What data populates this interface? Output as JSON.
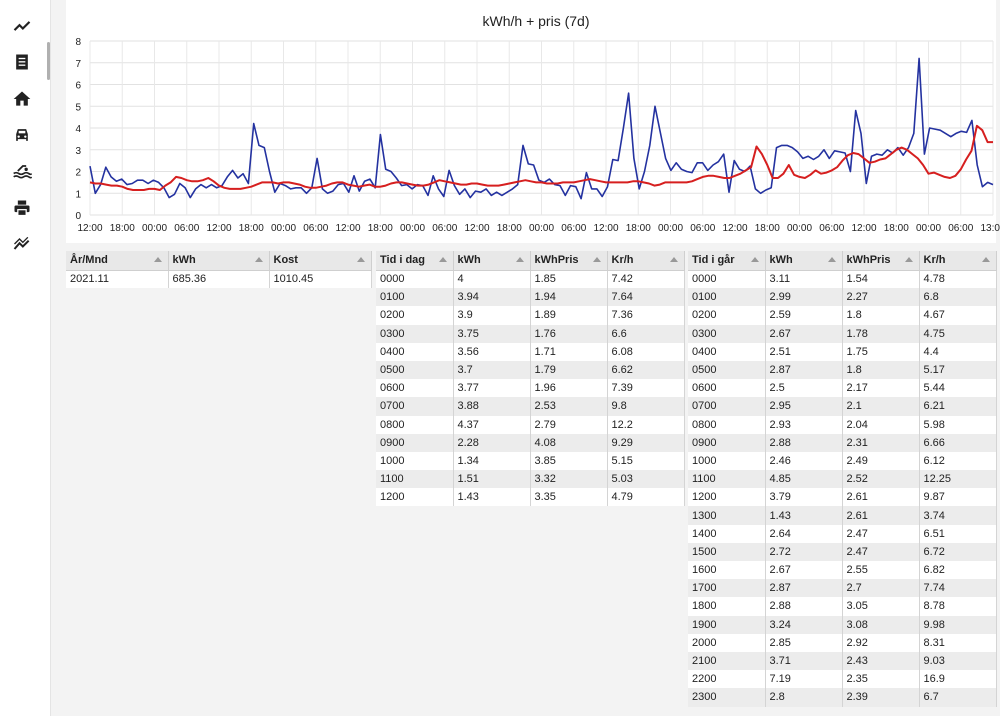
{
  "sidebar": {
    "items": [
      {
        "icon": "chart-line-icon"
      },
      {
        "icon": "receipt-icon"
      },
      {
        "icon": "home-icon"
      },
      {
        "icon": "car-icon"
      },
      {
        "icon": "pool-icon"
      },
      {
        "icon": "printer-icon"
      },
      {
        "icon": "trend-icon"
      }
    ]
  },
  "chart_data": {
    "type": "line",
    "title": "kWh/h + pris (7d)",
    "ylim": [
      0,
      8
    ],
    "yticks": [
      "0",
      "1",
      "2",
      "3",
      "4",
      "5",
      "6",
      "7",
      "8"
    ],
    "xticks": [
      "12:00",
      "18:00",
      "00:00",
      "06:00",
      "12:00",
      "18:00",
      "00:00",
      "06:00",
      "12:00",
      "18:00",
      "00:00",
      "06:00",
      "12:00",
      "18:00",
      "00:00",
      "06:00",
      "12:00",
      "18:00",
      "00:00",
      "06:00",
      "12:00",
      "18:00",
      "00:00",
      "06:00",
      "12:00",
      "18:00",
      "00:00",
      "06:00",
      "13:00"
    ],
    "grid": true,
    "colors": {
      "kwh": "#2432a0",
      "price": "#d61f1f"
    },
    "series": [
      {
        "key": "kwh",
        "values": [
          2.25,
          1.0,
          1.4,
          2.2,
          1.75,
          1.55,
          1.65,
          1.4,
          1.45,
          1.6,
          1.6,
          1.45,
          1.6,
          1.5,
          1.25,
          0.8,
          0.95,
          1.45,
          1.25,
          0.8,
          1.2,
          1.4,
          1.25,
          1.4,
          1.25,
          1.35,
          1.75,
          2.05,
          1.7,
          1.9,
          1.45,
          4.2,
          3.2,
          3.1,
          2.0,
          1.05,
          1.45,
          1.35,
          1.2,
          1.25,
          1.25,
          1.0,
          1.25,
          2.6,
          1.2,
          1.0,
          1.1,
          1.4,
          1.45,
          1.05,
          1.8,
          1.1,
          1.55,
          1.65,
          1.25,
          3.7,
          2.1,
          2.0,
          1.7,
          1.35,
          1.4,
          1.2,
          1.4,
          1.35,
          0.9,
          1.8,
          1.2,
          0.85,
          2.05,
          1.35,
          0.95,
          1.2,
          0.8,
          1.1,
          1.05,
          1.2,
          0.9,
          1.05,
          0.9,
          1.05,
          1.2,
          1.4,
          3.2,
          2.35,
          2.3,
          1.6,
          1.5,
          1.65,
          1.4,
          1.35,
          0.9,
          1.35,
          1.3,
          0.75,
          1.95,
          1.2,
          1.2,
          0.85,
          1.3,
          2.55,
          2.5,
          4.0,
          5.6,
          2.6,
          1.2,
          2.0,
          3.2,
          5.0,
          3.8,
          2.6,
          2.05,
          2.4,
          2.1,
          2.0,
          1.95,
          2.4,
          2.4,
          2.05,
          2.3,
          2.45,
          2.8,
          1.05,
          2.5,
          2.1,
          2.0,
          2.25,
          1.2,
          1.0,
          1.15,
          1.25,
          3.1,
          3.2,
          3.2,
          3.1,
          2.9,
          2.6,
          2.7,
          2.55,
          2.7,
          3.0,
          2.6,
          2.95,
          2.9,
          2.85,
          2.0,
          4.8,
          3.75,
          1.45,
          2.7,
          2.8,
          2.75,
          3.0,
          2.85,
          3.1,
          2.75,
          3.1,
          3.75,
          7.2,
          2.8,
          4.0,
          3.95,
          3.9,
          3.75,
          3.6,
          3.75,
          3.85,
          3.8,
          4.35,
          2.3,
          1.3,
          1.5,
          1.4
        ]
      },
      {
        "key": "price",
        "values": [
          1.5,
          1.45,
          1.45,
          1.4,
          1.35,
          1.35,
          1.3,
          1.2,
          1.15,
          1.15,
          1.15,
          1.2,
          1.2,
          1.15,
          1.35,
          1.5,
          1.75,
          1.7,
          1.6,
          1.55,
          1.55,
          1.6,
          1.7,
          1.55,
          1.35,
          1.25,
          1.2,
          1.2,
          1.2,
          1.25,
          1.3,
          1.4,
          1.5,
          1.5,
          1.5,
          1.45,
          1.5,
          1.5,
          1.45,
          1.4,
          1.3,
          1.25,
          1.25,
          1.3,
          1.35,
          1.45,
          1.5,
          1.5,
          1.4,
          1.35,
          1.3,
          1.35,
          1.4,
          1.3,
          1.3,
          1.35,
          1.45,
          1.5,
          1.5,
          1.45,
          1.4,
          1.35,
          1.35,
          1.4,
          1.5,
          1.6,
          1.55,
          1.5,
          1.45,
          1.4,
          1.4,
          1.45,
          1.45,
          1.4,
          1.35,
          1.35,
          1.35,
          1.4,
          1.45,
          1.5,
          1.55,
          1.6,
          1.55,
          1.5,
          1.5,
          1.45,
          1.45,
          1.45,
          1.5,
          1.5,
          1.5,
          1.55,
          1.6,
          1.65,
          1.6,
          1.55,
          1.5,
          1.5,
          1.5,
          1.5,
          1.5,
          1.55,
          1.55,
          1.5,
          1.45,
          1.35,
          1.4,
          1.5,
          1.5,
          1.5,
          1.5,
          1.5,
          1.55,
          1.65,
          1.75,
          1.8,
          1.8,
          1.75,
          1.7,
          1.7,
          1.8,
          1.9,
          2.05,
          2.2,
          3.15,
          2.8,
          2.3,
          1.7,
          1.7,
          1.9,
          2.3,
          1.85,
          1.75,
          1.7,
          1.85,
          2.05,
          1.9,
          1.95,
          2.05,
          2.2,
          2.5,
          2.75,
          2.85,
          2.8,
          2.6,
          2.4,
          2.45,
          2.55,
          2.6,
          2.8,
          3.0,
          3.1,
          3.0,
          2.8,
          2.6,
          2.3,
          1.9,
          1.95,
          1.85,
          1.75,
          1.7,
          1.8,
          2.1,
          2.55,
          2.95,
          4.1,
          3.9,
          3.35,
          3.35
        ]
      }
    ]
  },
  "tables": {
    "monthly": {
      "headers": [
        "År/Mnd",
        "kWh",
        "Kost"
      ],
      "rows": [
        [
          "2021.11",
          "685.36",
          "1010.45"
        ]
      ]
    },
    "today": {
      "headers": [
        "Tid i dag",
        "kWh",
        "kWhPris",
        "Kr/h"
      ],
      "rows": [
        [
          "0000",
          "4",
          "1.85",
          "7.42"
        ],
        [
          "0100",
          "3.94",
          "1.94",
          "7.64"
        ],
        [
          "0200",
          "3.9",
          "1.89",
          "7.36"
        ],
        [
          "0300",
          "3.75",
          "1.76",
          "6.6"
        ],
        [
          "0400",
          "3.56",
          "1.71",
          "6.08"
        ],
        [
          "0500",
          "3.7",
          "1.79",
          "6.62"
        ],
        [
          "0600",
          "3.77",
          "1.96",
          "7.39"
        ],
        [
          "0700",
          "3.88",
          "2.53",
          "9.8"
        ],
        [
          "0800",
          "4.37",
          "2.79",
          "12.2"
        ],
        [
          "0900",
          "2.28",
          "4.08",
          "9.29"
        ],
        [
          "1000",
          "1.34",
          "3.85",
          "5.15"
        ],
        [
          "1100",
          "1.51",
          "3.32",
          "5.03"
        ],
        [
          "1200",
          "1.43",
          "3.35",
          "4.79"
        ]
      ]
    },
    "yesterday": {
      "headers": [
        "Tid i går",
        "kWh",
        "kWhPris",
        "Kr/h"
      ],
      "rows": [
        [
          "0000",
          "3.11",
          "1.54",
          "4.78"
        ],
        [
          "0100",
          "2.99",
          "2.27",
          "6.8"
        ],
        [
          "0200",
          "2.59",
          "1.8",
          "4.67"
        ],
        [
          "0300",
          "2.67",
          "1.78",
          "4.75"
        ],
        [
          "0400",
          "2.51",
          "1.75",
          "4.4"
        ],
        [
          "0500",
          "2.87",
          "1.8",
          "5.17"
        ],
        [
          "0600",
          "2.5",
          "2.17",
          "5.44"
        ],
        [
          "0700",
          "2.95",
          "2.1",
          "6.21"
        ],
        [
          "0800",
          "2.93",
          "2.04",
          "5.98"
        ],
        [
          "0900",
          "2.88",
          "2.31",
          "6.66"
        ],
        [
          "1000",
          "2.46",
          "2.49",
          "6.12"
        ],
        [
          "1100",
          "4.85",
          "2.52",
          "12.25"
        ],
        [
          "1200",
          "3.79",
          "2.61",
          "9.87"
        ],
        [
          "1300",
          "1.43",
          "2.61",
          "3.74"
        ],
        [
          "1400",
          "2.64",
          "2.47",
          "6.51"
        ],
        [
          "1500",
          "2.72",
          "2.47",
          "6.72"
        ],
        [
          "1600",
          "2.67",
          "2.55",
          "6.82"
        ],
        [
          "1700",
          "2.87",
          "2.7",
          "7.74"
        ],
        [
          "1800",
          "2.88",
          "3.05",
          "8.78"
        ],
        [
          "1900",
          "3.24",
          "3.08",
          "9.98"
        ],
        [
          "2000",
          "2.85",
          "2.92",
          "8.31"
        ],
        [
          "2100",
          "3.71",
          "2.43",
          "9.03"
        ],
        [
          "2200",
          "7.19",
          "2.35",
          "16.9"
        ],
        [
          "2300",
          "2.8",
          "2.39",
          "6.7"
        ]
      ]
    }
  }
}
